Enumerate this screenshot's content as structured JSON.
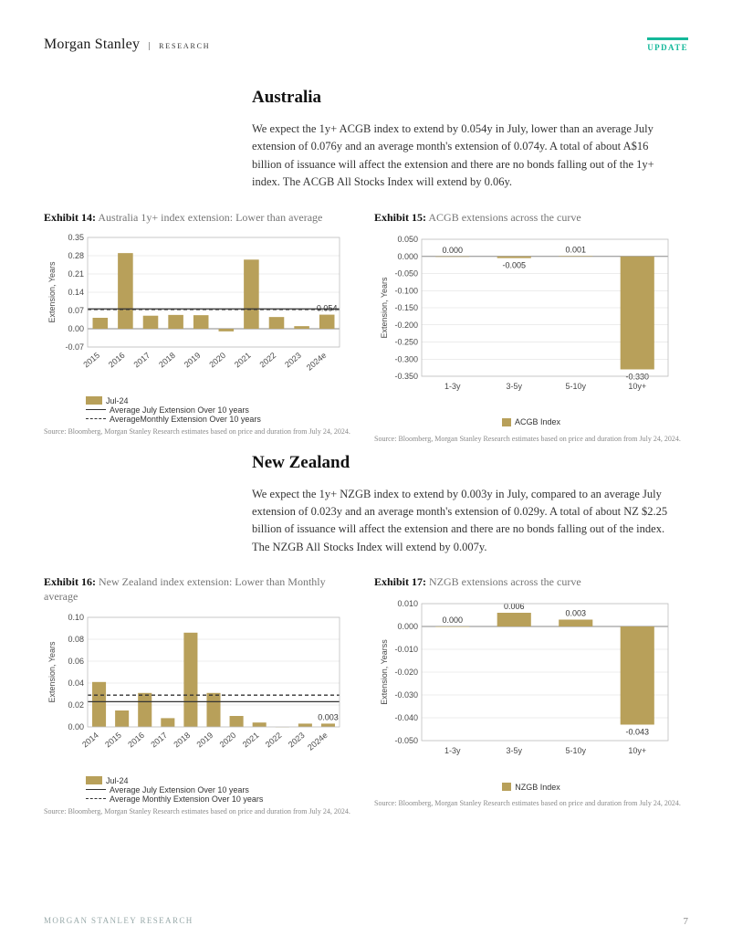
{
  "header": {
    "brand": "Morgan Stanley",
    "research_label": "RESEARCH",
    "update_badge": "UPDATE",
    "update_color": "#14b89a"
  },
  "sections": {
    "australia": {
      "title": "Australia",
      "body": "We expect the 1y+ ACGB index to extend by 0.054y in July, lower than an average July extension of 0.076y and an average month's extension of 0.074y. A total of about A$16 billion of issuance will affect the extension and there are no bonds falling out of the 1y+ index. The ACGB All Stocks Index will extend by 0.06y."
    },
    "newzealand": {
      "title": "New Zealand",
      "body": "We expect the 1y+ NZGB index to extend by 0.003y in July, compared to an average July extension of 0.023y and an average month's extension of 0.029y. A total of about NZ $2.25 billion of issuance will affect the extension and there are no bonds falling out of the index. The NZGB All Stocks Index will extend by 0.007y."
    }
  },
  "exhibit14": {
    "number": "Exhibit 14:",
    "title": "Australia 1y+ index extension: Lower than average",
    "type": "bar",
    "categories": [
      "2015",
      "2016",
      "2017",
      "2018",
      "2019",
      "2020",
      "2021",
      "2022",
      "2023",
      "2024e"
    ],
    "values": [
      0.042,
      0.29,
      0.05,
      0.053,
      0.052,
      -0.01,
      0.265,
      0.045,
      0.01,
      0.054
    ],
    "last_value_label": "0.054",
    "ylim": [
      -0.07,
      0.35
    ],
    "ytick_step": 0.07,
    "ylabel": "Extension, Years",
    "bar_color": "#b8a05a",
    "avg_july": 0.076,
    "avg_monthly": 0.074,
    "legend": {
      "series": "Jul-24",
      "line1": "Average July Extension Over 10 years",
      "line2": "AverageMonthly Extension Over 10 years"
    },
    "source": "Source: Bloomberg, Morgan Stanley Research estimates based on price and duration from July 24, 2024.",
    "background_color": "#ffffff",
    "grid_color": "#d9d9d9",
    "text_color": "#4a4a4a",
    "label_fontsize": 9
  },
  "exhibit15": {
    "number": "Exhibit 15:",
    "title": "ACGB extensions across the curve",
    "type": "bar",
    "categories": [
      "1-3y",
      "3-5y",
      "5-10y",
      "10y+"
    ],
    "values": [
      0.0,
      -0.005,
      0.001,
      -0.33
    ],
    "value_labels": [
      "0.000",
      "-0.005",
      "0.001",
      "-0.330"
    ],
    "ylim": [
      -0.35,
      0.05
    ],
    "ytick_step": 0.05,
    "ylabel": "Extension, Years",
    "bar_color": "#b8a05a",
    "legend_label": "ACGB Index",
    "source": "Source: Bloomberg, Morgan Stanley Research estimates based on price and duration from July 24, 2024.",
    "background_color": "#ffffff",
    "grid_color": "#d9d9d9",
    "text_color": "#4a4a4a",
    "label_fontsize": 9
  },
  "exhibit16": {
    "number": "Exhibit 16:",
    "title": "New Zealand index extension: Lower than Monthly average",
    "type": "bar",
    "categories": [
      "2014",
      "2015",
      "2016",
      "2017",
      "2018",
      "2019",
      "2020",
      "2021",
      "2022",
      "2023",
      "2024e"
    ],
    "values": [
      0.041,
      0.015,
      0.031,
      0.008,
      0.086,
      0.031,
      0.01,
      0.004,
      0.0,
      0.003,
      0.003
    ],
    "last_value_label": "0.003",
    "ylim": [
      0.0,
      0.1
    ],
    "ytick_step": 0.02,
    "ylabel": "Extension, Years",
    "bar_color": "#b8a05a",
    "avg_july": 0.023,
    "avg_monthly": 0.029,
    "legend": {
      "series": "Jul-24",
      "line1": "Average July Extension Over 10 years",
      "line2": "Average Monthly Extension Over 10 years"
    },
    "source": "Source: Bloomberg, Morgan Stanley Research estimates based on price and duration from July 24, 2024.",
    "background_color": "#ffffff",
    "grid_color": "#d9d9d9",
    "text_color": "#4a4a4a",
    "label_fontsize": 9
  },
  "exhibit17": {
    "number": "Exhibit 17:",
    "title": "NZGB extensions across the curve",
    "type": "bar",
    "categories": [
      "1-3y",
      "3-5y",
      "5-10y",
      "10y+"
    ],
    "values": [
      0.0,
      0.006,
      0.003,
      -0.043
    ],
    "value_labels": [
      "0.000",
      "0.006",
      "0.003",
      "-0.043"
    ],
    "ylim": [
      -0.05,
      0.01
    ],
    "ytick_step": 0.01,
    "ylabel": "Extension, Yearss",
    "bar_color": "#b8a05a",
    "legend_label": "NZGB Index",
    "source": "Source: Bloomberg, Morgan Stanley Research estimates based on price and duration from July 24, 2024.",
    "background_color": "#ffffff",
    "grid_color": "#d9d9d9",
    "text_color": "#4a4a4a",
    "label_fontsize": 9
  },
  "footer": {
    "text": "MORGAN STANLEY RESEARCH",
    "page": "7"
  }
}
